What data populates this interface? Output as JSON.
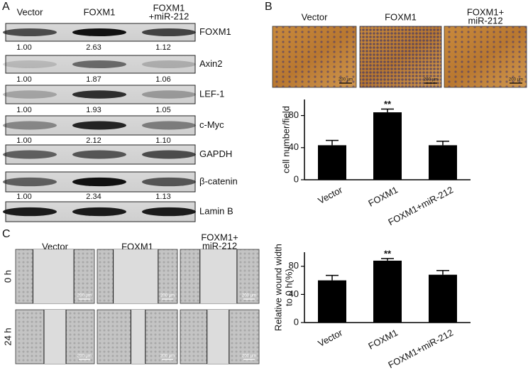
{
  "panel_labels": [
    "A",
    "B",
    "C"
  ],
  "panel_a": {
    "columns": [
      [
        "Vector"
      ],
      [
        "FOXM1"
      ],
      [
        "FOXM1",
        "+miR-212"
      ]
    ],
    "blots": [
      {
        "label": "FOXM1",
        "values": [
          "1.00",
          "2.63",
          "1.12"
        ]
      },
      {
        "label": "Axin2",
        "values": [
          "1.00",
          "1.87",
          "1.06"
        ]
      },
      {
        "label": "LEF-1",
        "values": [
          "1.00",
          "1.93",
          "1.05"
        ]
      },
      {
        "label": "c-Myc",
        "values": [
          "1.00",
          "2.12",
          "1.10"
        ]
      },
      {
        "label": "GAPDH"
      },
      {
        "label": "β-catenin",
        "values": [
          "1.00",
          "2.34",
          "1.13"
        ]
      },
      {
        "label": "Lamin B"
      }
    ]
  },
  "panel_b": {
    "columns": [
      [
        "Vector"
      ],
      [
        "FOXM1"
      ],
      [
        "FOXM1+",
        "miR-212"
      ]
    ],
    "scale_bar": "200 μm"
  },
  "panel_c": {
    "columns": [
      [
        "Vector"
      ],
      [
        "FOXM1"
      ],
      [
        "FOXM1+",
        "miR-212"
      ]
    ],
    "rows": [
      "0 h",
      "24 h"
    ],
    "scale_bar": "200 μm"
  },
  "chart_data": [
    {
      "type": "bar",
      "y_label": [
        "cell number/field"
      ],
      "categories": [
        "Vector",
        "FOXM1",
        "FOXM1+miR-212"
      ],
      "values": [
        43,
        84,
        43
      ],
      "errors": [
        6,
        4,
        5
      ],
      "significance": [
        null,
        "**",
        null
      ],
      "color": "#000000",
      "ylim": [
        0,
        100
      ],
      "yticks": [
        0,
        40,
        80
      ]
    },
    {
      "type": "bar",
      "y_label": [
        "Relative wound width",
        "to 0 h(%)"
      ],
      "categories": [
        "Vector",
        "FOXM1",
        "FOXM1+miR-212"
      ],
      "values": [
        60,
        88,
        68
      ],
      "errors": [
        7,
        3,
        6
      ],
      "significance": [
        null,
        "**",
        null
      ],
      "color": "#000000",
      "ylim": [
        0,
        100
      ],
      "yticks": [
        0,
        40,
        80
      ]
    }
  ]
}
